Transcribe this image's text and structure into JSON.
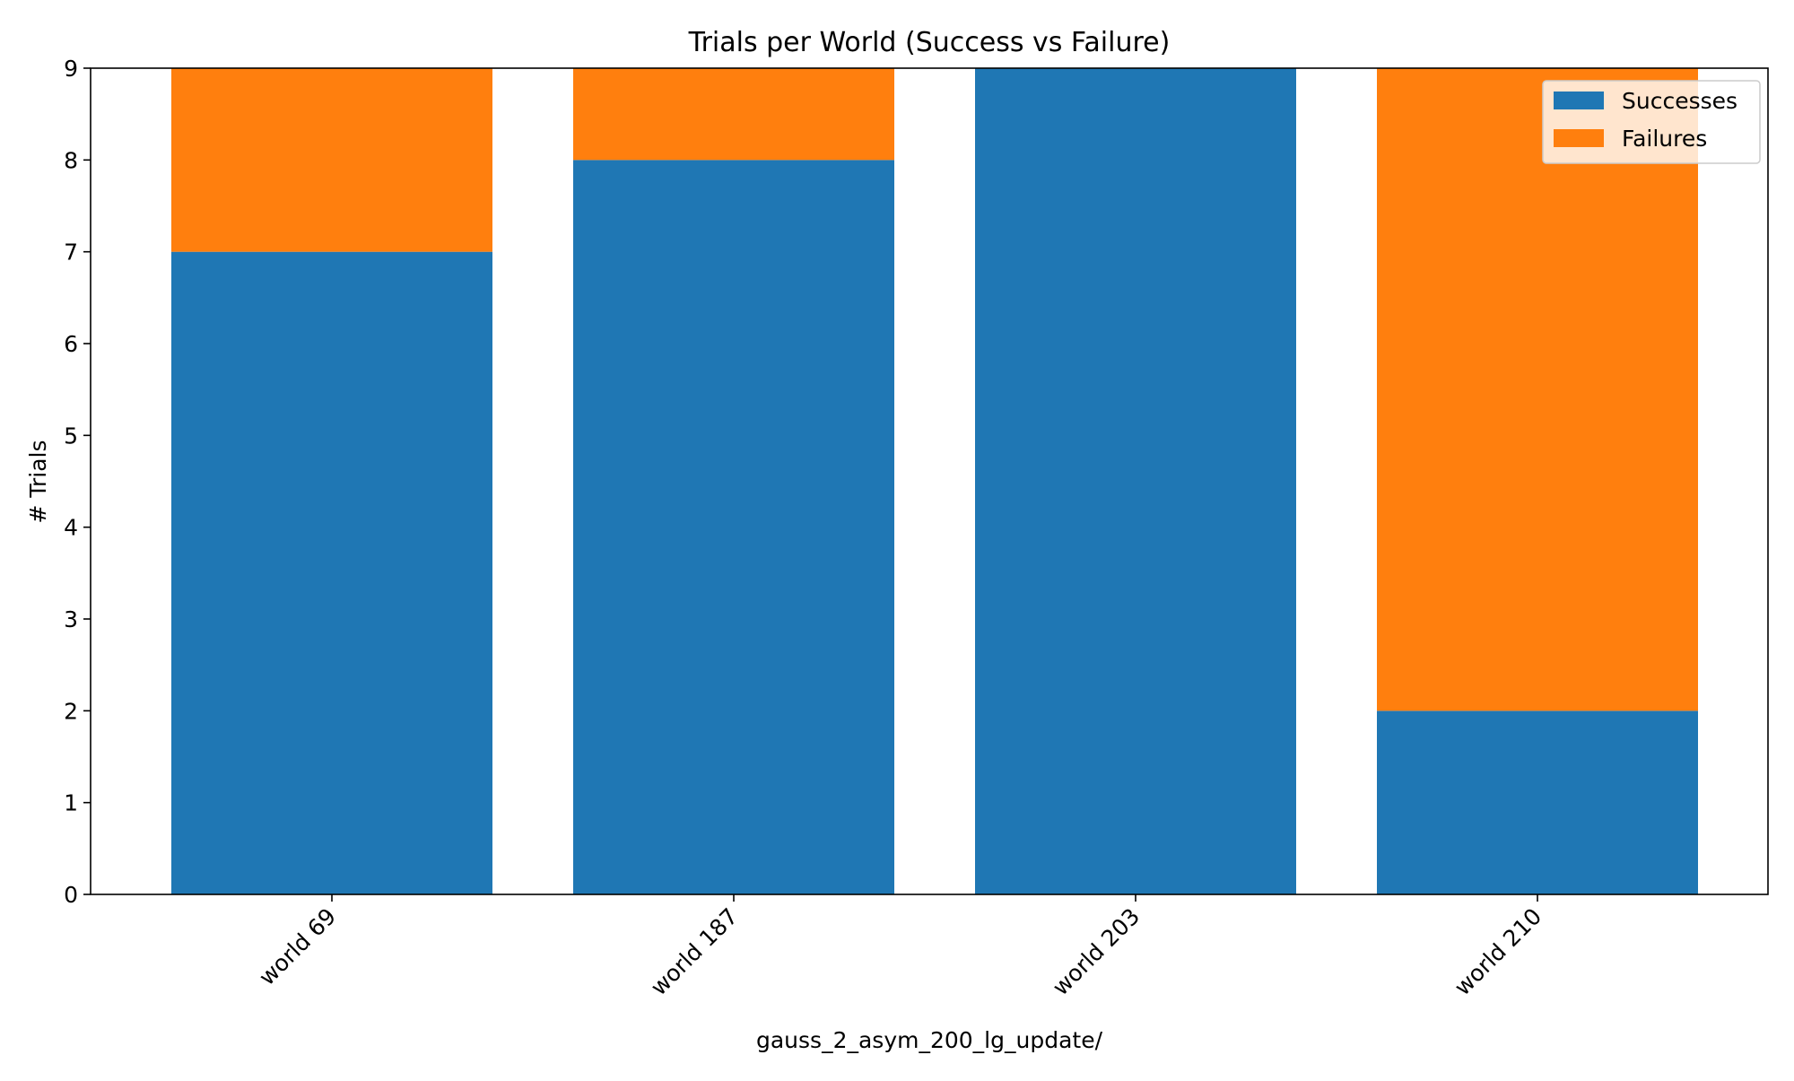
{
  "chart_data": {
    "type": "bar",
    "stacked": true,
    "title": "Trials per World (Success vs Failure)",
    "xlabel": "gauss_2_asym_200_lg_update/",
    "ylabel": "# Trials",
    "categories": [
      "world 69",
      "world 187",
      "world 203",
      "world 210"
    ],
    "series": [
      {
        "name": "Successes",
        "values": [
          7,
          8,
          9,
          2
        ],
        "color": "#1f77b4"
      },
      {
        "name": "Failures",
        "values": [
          2,
          1,
          0,
          7
        ],
        "color": "#ff7f0e"
      }
    ],
    "ylim": [
      0,
      9
    ],
    "yticks": [
      "0",
      "1",
      "2",
      "3",
      "4",
      "5",
      "6",
      "7",
      "8",
      "9"
    ],
    "grid": false,
    "legend_position": "top-right"
  }
}
